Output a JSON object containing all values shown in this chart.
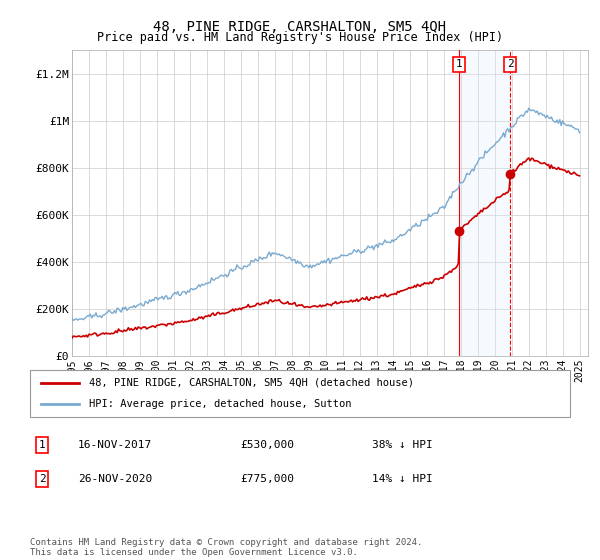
{
  "title": "48, PINE RIDGE, CARSHALTON, SM5 4QH",
  "subtitle": "Price paid vs. HM Land Registry's House Price Index (HPI)",
  "ylabel_ticks": [
    "£0",
    "£200K",
    "£400K",
    "£600K",
    "£800K",
    "£1M",
    "£1.2M"
  ],
  "ytick_values": [
    0,
    200000,
    400000,
    600000,
    800000,
    1000000,
    1200000
  ],
  "ylim": [
    0,
    1300000
  ],
  "xlim_start": 1995.0,
  "xlim_end": 2025.5,
  "event1_x": 2017.88,
  "event2_x": 2020.9,
  "event1_price": 530000,
  "event2_price": 775000,
  "event1_label": "1",
  "event2_label": "2",
  "event1_date": "16-NOV-2017",
  "event2_date": "26-NOV-2020",
  "event1_price_str": "£530,000",
  "event2_price_str": "£775,000",
  "event1_text": "38% ↓ HPI",
  "event2_text": "14% ↓ HPI",
  "hpi_color": "#7aaad0",
  "price_color": "#cc0000",
  "legend_label1": "48, PINE RIDGE, CARSHALTON, SM5 4QH (detached house)",
  "legend_label2": "HPI: Average price, detached house, Sutton",
  "footer": "Contains HM Land Registry data © Crown copyright and database right 2024.\nThis data is licensed under the Open Government Licence v3.0.",
  "background_highlight": "#ddeeff",
  "grid_color": "#cccccc"
}
